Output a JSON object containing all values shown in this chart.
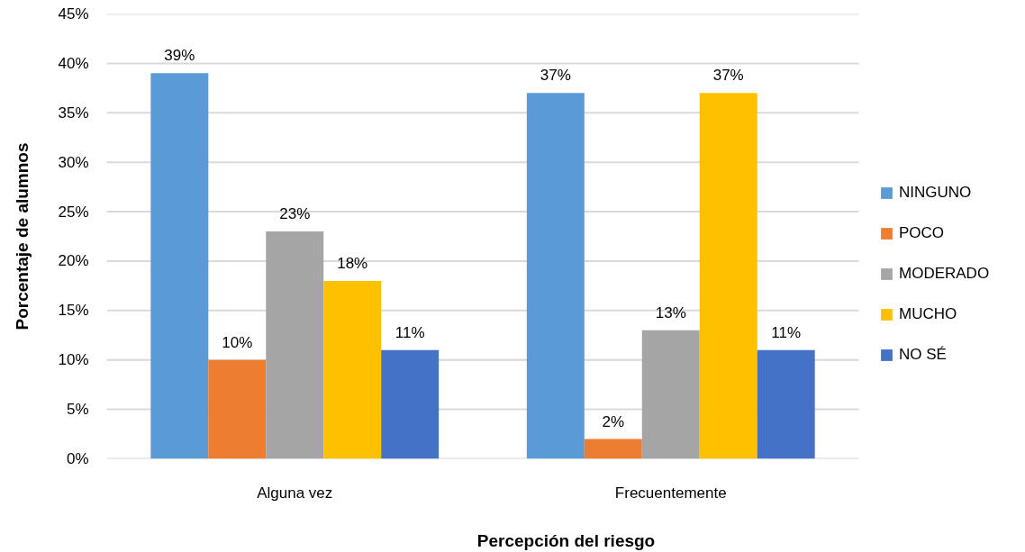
{
  "chart_data": {
    "type": "bar",
    "xlabel": "Percepción del riesgo",
    "ylabel": "Porcentaje de alumnos",
    "categories": [
      "Alguna vez",
      "Frecuentemente"
    ],
    "series": [
      {
        "name": "NINGUNO",
        "color": "#5b9bd5",
        "values": [
          39,
          37
        ],
        "value_labels": [
          "39%",
          "37%"
        ]
      },
      {
        "name": "POCO",
        "color": "#ed7d31",
        "values": [
          10,
          2
        ],
        "value_labels": [
          "10%",
          "2%"
        ]
      },
      {
        "name": "MODERADO",
        "color": "#a5a5a5",
        "values": [
          23,
          13
        ],
        "value_labels": [
          "23%",
          "13%"
        ]
      },
      {
        "name": "MUCHO",
        "color": "#ffc000",
        "values": [
          18,
          37
        ],
        "value_labels": [
          "18%",
          "37%"
        ]
      },
      {
        "name": "NO SÉ",
        "color": "#4472c4",
        "values": [
          11,
          11
        ],
        "value_labels": [
          "11%",
          "11%"
        ]
      }
    ],
    "ylim": [
      0,
      45
    ],
    "yticks": [
      {
        "value": 0,
        "label": "0%"
      },
      {
        "value": 5,
        "label": "5%"
      },
      {
        "value": 10,
        "label": "10%"
      },
      {
        "value": 15,
        "label": "15%"
      },
      {
        "value": 20,
        "label": "20%"
      },
      {
        "value": 25,
        "label": "25%"
      },
      {
        "value": 30,
        "label": "30%"
      },
      {
        "value": 35,
        "label": "35%"
      },
      {
        "value": 40,
        "label": "40%"
      },
      {
        "value": 45,
        "label": "45%"
      }
    ],
    "grid": "y",
    "legend": "right"
  }
}
